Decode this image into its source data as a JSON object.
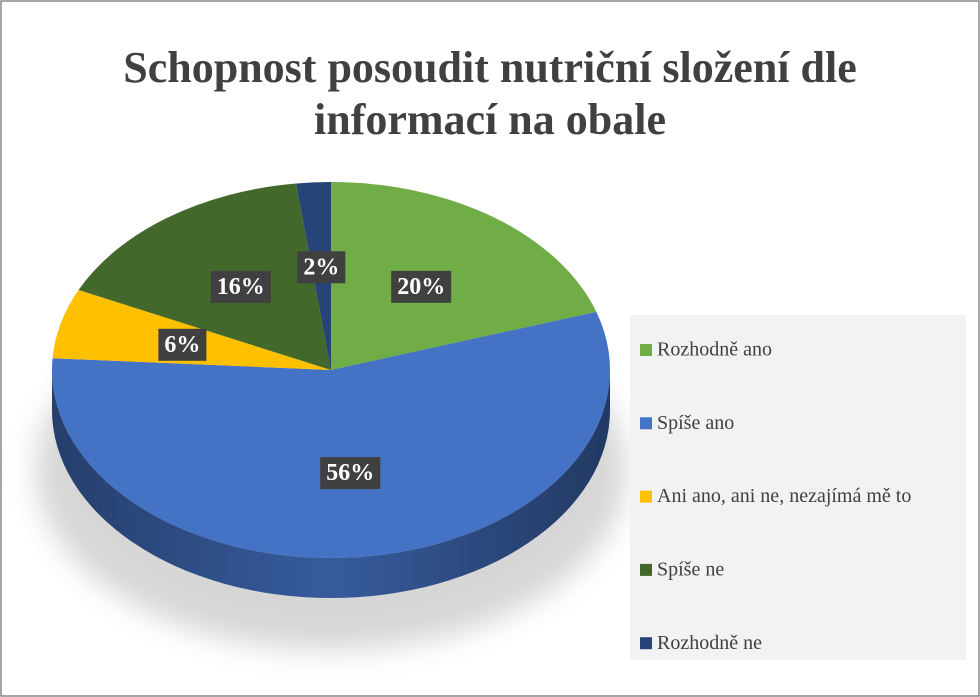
{
  "chart_data": {
    "type": "pie",
    "title": "Schopnost posoudit nutriční složení dle informací na obale",
    "categories": [
      "Rozhodně ano",
      "Spíše ano",
      "Ani ano, ani ne, nezajímá mě to",
      "Spíše ne",
      "Rozhodně ne"
    ],
    "values": [
      20,
      56,
      6,
      16,
      2
    ],
    "value_labels": [
      "20%",
      "56%",
      "6%",
      "16%",
      "2%"
    ],
    "colors": [
      "#70ad47",
      "#4472c4",
      "#ffc000",
      "#43682b",
      "#264478"
    ],
    "legend": "right"
  }
}
